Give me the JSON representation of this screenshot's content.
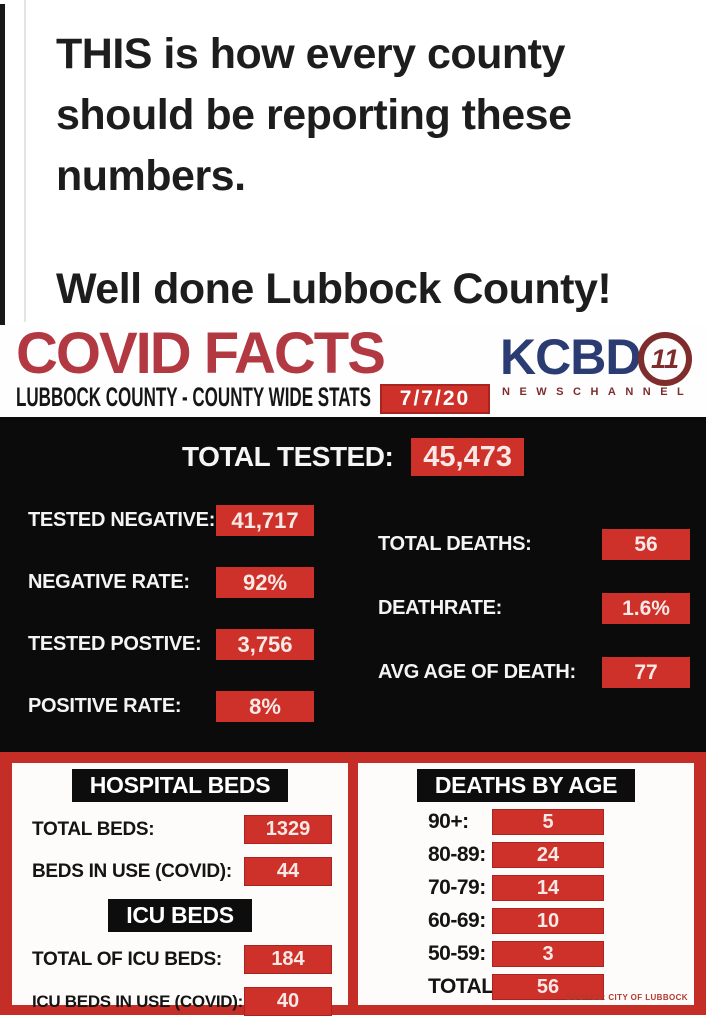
{
  "post": {
    "text_primary": "THIS is how every county should be reporting these numbers.",
    "text_secondary": "Well done Lubbock County!"
  },
  "header": {
    "title": "COVID FACTS",
    "subtitle": "LUBBOCK COUNTY - COUNTY WIDE STATS",
    "date": "7/7/20",
    "station": {
      "name": "KCBD",
      "channel": "11",
      "tagline": "NEWSCHANNEL"
    }
  },
  "stats": {
    "total": {
      "label": "TOTAL TESTED:",
      "value": "45,473"
    },
    "left": [
      {
        "label": "TESTED NEGATIVE:",
        "value": "41,717"
      },
      {
        "label": "NEGATIVE RATE:",
        "value": "92%"
      },
      {
        "label": "TESTED POSTIVE:",
        "value": "3,756"
      },
      {
        "label": "POSITIVE RATE:",
        "value": "8%"
      }
    ],
    "right": [
      {
        "label": "TOTAL DEATHS:",
        "value": "56"
      },
      {
        "label": "DEATHRATE:",
        "value": "1.6%"
      },
      {
        "label": "AVG AGE OF DEATH:",
        "value": "77"
      }
    ]
  },
  "hospital": {
    "header_beds": "HOSPITAL BEDS",
    "rows_beds": [
      {
        "label": "TOTAL BEDS:",
        "value": "1329"
      },
      {
        "label": "BEDS IN USE (COVID):",
        "value": "44"
      }
    ],
    "header_icu": "ICU BEDS",
    "rows_icu": [
      {
        "label": "TOTAL OF ICU BEDS:",
        "value": "184"
      },
      {
        "label": "ICU BEDS IN USE (COVID):",
        "value": "40"
      }
    ]
  },
  "deaths_by_age": {
    "header": "DEATHS BY AGE",
    "rows": [
      {
        "label": "90+:",
        "value": "5"
      },
      {
        "label": "80-89:",
        "value": "24"
      },
      {
        "label": "70-79:",
        "value": "14"
      },
      {
        "label": "60-69:",
        "value": "10"
      },
      {
        "label": "50-59:",
        "value": "3"
      },
      {
        "label": "TOTAL:",
        "value": "56"
      }
    ],
    "source": "SOURCE: CITY OF LUBBOCK"
  },
  "colors": {
    "value_box_red": "#ce3129",
    "frame_red": "#c52e27",
    "title_crimson": "#b23841",
    "kcbd_blue": "#2b3c73",
    "kcbd_maroon": "#7e2c2c",
    "panel_black": "#0b0b0b"
  },
  "chart_data": {
    "type": "table",
    "title": "COVID FACTS",
    "subtitle": "LUBBOCK COUNTY - COUNTY WIDE STATS",
    "date": "7/7/20",
    "tables": [
      {
        "name": "Testing totals",
        "rows": [
          [
            "TOTAL TESTED",
            45473
          ],
          [
            "TESTED NEGATIVE",
            41717
          ],
          [
            "NEGATIVE RATE",
            "92%"
          ],
          [
            "TESTED POSTIVE",
            3756
          ],
          [
            "POSITIVE RATE",
            "8%"
          ]
        ]
      },
      {
        "name": "Deaths summary",
        "rows": [
          [
            "TOTAL DEATHS",
            56
          ],
          [
            "DEATHRATE",
            "1.6%"
          ],
          [
            "AVG AGE OF DEATH",
            77
          ]
        ]
      },
      {
        "name": "HOSPITAL BEDS",
        "rows": [
          [
            "TOTAL BEDS",
            1329
          ],
          [
            "BEDS IN USE (COVID)",
            44
          ],
          [
            "TOTAL OF ICU BEDS",
            184
          ],
          [
            "ICU BEDS IN USE (COVID)",
            40
          ]
        ]
      },
      {
        "name": "DEATHS BY AGE",
        "rows": [
          [
            "90+",
            5
          ],
          [
            "80-89",
            24
          ],
          [
            "70-79",
            14
          ],
          [
            "60-69",
            10
          ],
          [
            "50-59",
            3
          ],
          [
            "TOTAL",
            56
          ]
        ]
      }
    ],
    "source": "SOURCE: CITY OF LUBBOCK"
  }
}
